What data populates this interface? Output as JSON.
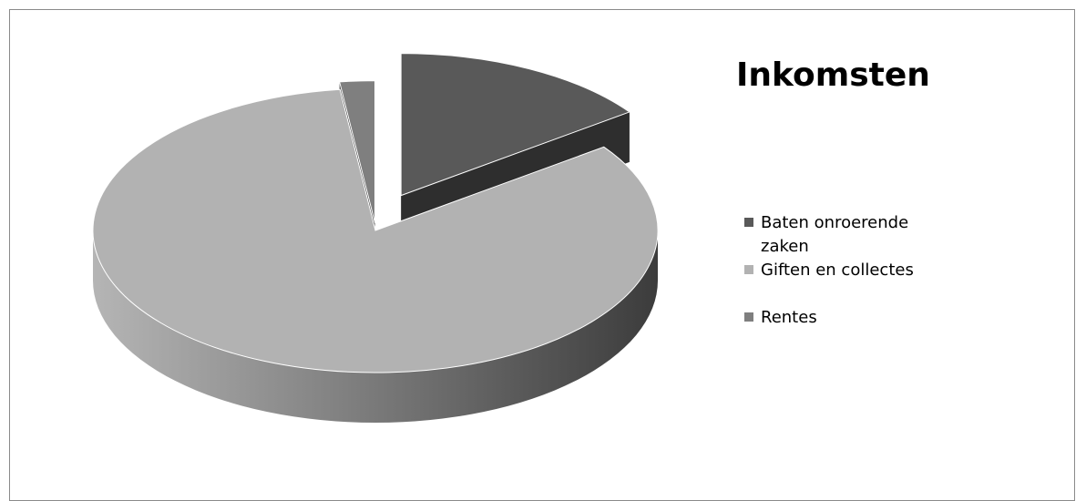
{
  "chart_data": {
    "type": "pie",
    "style": "3d-exploded",
    "title": "Inkomsten",
    "legend_position": "right",
    "categories": [
      "Baten onroerende zaken",
      "Giften en collectes",
      "Rentes"
    ],
    "values": [
      15,
      83,
      2
    ],
    "unit": "%",
    "colors": [
      "#595959",
      "#b2b2b2",
      "#7f7f7f"
    ],
    "side_colors": [
      "#2e2e2e",
      "#4a4a4a",
      "#3a3a3a"
    ]
  }
}
